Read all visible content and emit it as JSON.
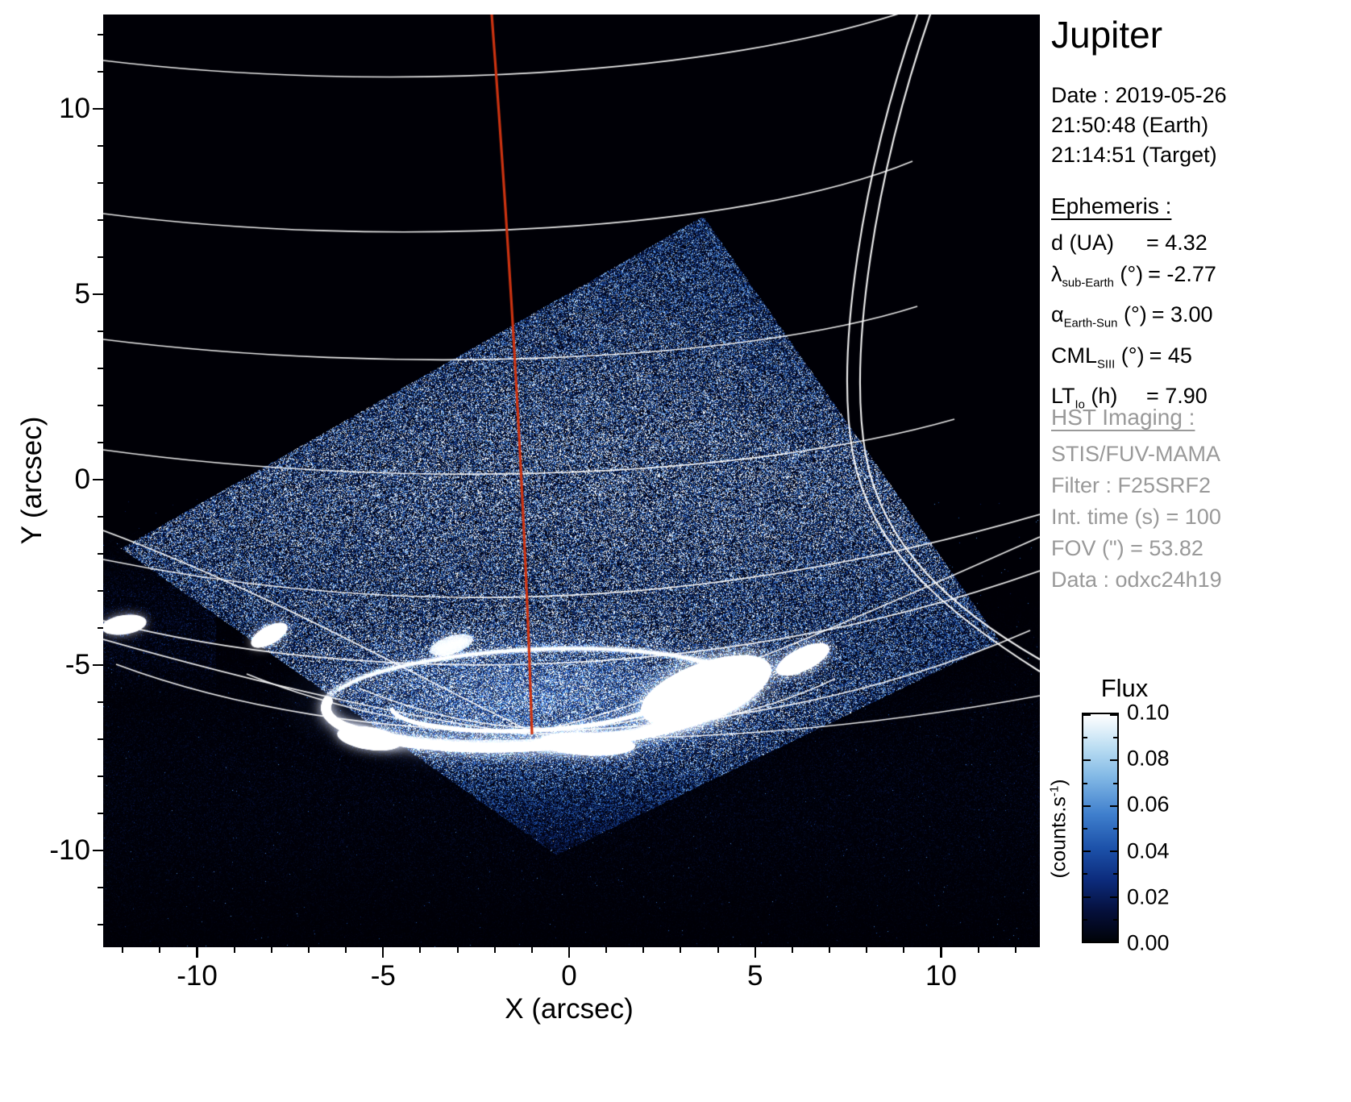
{
  "title": "Jupiter",
  "date_block": {
    "line1": "Date : 2019-05-26",
    "line2": "21:50:48 (Earth)",
    "line3": "21:14:51 (Target)"
  },
  "ephemeris": {
    "heading": "Ephemeris :",
    "rows": [
      {
        "sym": "d",
        "sub": "",
        "unit": "(UA)",
        "value": "= 4.32"
      },
      {
        "sym": "λ",
        "sub": "sub-Earth",
        "unit": "(°)",
        "value": "= -2.77"
      },
      {
        "sym": "α",
        "sub": "Earth-Sun",
        "unit": "(°)",
        "value": "= 3.00"
      },
      {
        "sym": "CML",
        "sub": "SIII",
        "unit": "(°)",
        "value": "= 45"
      },
      {
        "sym": "LT",
        "sub": "Io",
        "unit": "(h)",
        "value": "= 7.90"
      }
    ]
  },
  "hst": {
    "heading": "HST Imaging :",
    "lines": [
      "STIS/FUV-MAMA",
      "Filter : F25SRF2",
      "Int. time (s) = 100",
      "FOV (\") = 53.82",
      "Data : odxc24h19"
    ],
    "color": "#999999"
  },
  "colorbar": {
    "title": "Flux",
    "units_pre": "(counts.s",
    "units_sup": "-1",
    "units_post": ")",
    "ticks": [
      "0.10",
      "0.08",
      "0.06",
      "0.04",
      "0.02",
      "0.00"
    ]
  },
  "axes": {
    "xlabel": "X (arcsec)",
    "ylabel": "Y (arcsec)",
    "x_ticks": [
      "-10",
      "-5",
      "0",
      "5",
      "10"
    ],
    "y_ticks": [
      "-10",
      "-5",
      "0",
      "5",
      "10"
    ]
  },
  "chart_data": {
    "type": "heatmap",
    "title": "Jupiter",
    "xlabel": "X (arcsec)",
    "ylabel": "Y (arcsec)",
    "xlim": [
      -12.5,
      12.5
    ],
    "ylim": [
      -12.5,
      12.5
    ],
    "x_ticks": [
      -10,
      -5,
      0,
      5,
      10
    ],
    "y_ticks": [
      -10,
      -5,
      0,
      5,
      10
    ],
    "grid": "white planetary coordinate graticule overlaid on image",
    "colorbar": {
      "label": "Flux",
      "units": "counts.s-1",
      "min": 0.0,
      "max": 0.1,
      "ticks": [
        0.0,
        0.02,
        0.04,
        0.06,
        0.08,
        0.1
      ]
    },
    "colors": {
      "background": "#000000",
      "grid": "#ffffff",
      "meridian_line": "#cc3311",
      "colormap": [
        "#000006",
        "#091852",
        "#184eaa",
        "#558ede",
        "#afd4f3",
        "#ffffff"
      ]
    }
  }
}
